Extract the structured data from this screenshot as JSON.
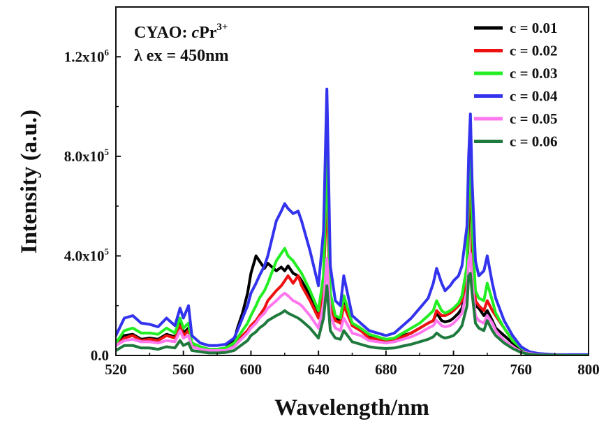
{
  "chart_data": {
    "type": "line",
    "xlabel": "Wavelength/nm",
    "ylabel": "Intensity (a.u.)",
    "xlim": [
      520,
      800
    ],
    "ylim": [
      0,
      1400000
    ],
    "xticks": [
      {
        "value": 520,
        "label": "520"
      },
      {
        "value": 560,
        "label": "560"
      },
      {
        "value": 600,
        "label": "600"
      },
      {
        "value": 640,
        "label": "640"
      },
      {
        "value": 680,
        "label": "680"
      },
      {
        "value": 720,
        "label": "720"
      },
      {
        "value": 760,
        "label": "760"
      },
      {
        "value": 800,
        "label": "800"
      }
    ],
    "yticks": [
      {
        "value": 0,
        "label": "0.0",
        "exp": ""
      },
      {
        "value": 400000,
        "label": "4.0x10",
        "exp": "5"
      },
      {
        "value": 800000,
        "label": "8.0x10",
        "exp": "5"
      },
      {
        "value": 1200000,
        "label": "1.2x10",
        "exp": "6"
      }
    ],
    "annotation": {
      "line1_prefix": "CYAO: ",
      "line1_italic": "c",
      "line1_ion": "Pr",
      "line1_sup": "3+",
      "line2": "λ ex = 450nm"
    },
    "series": [
      {
        "name": "c = 0.01",
        "color": "#000000",
        "x": [
          520,
          525,
          530,
          535,
          540,
          545,
          550,
          555,
          558,
          560,
          563,
          565,
          570,
          575,
          580,
          585,
          590,
          592,
          595,
          598,
          600,
          603,
          605,
          608,
          610,
          615,
          618,
          620,
          622,
          625,
          628,
          630,
          635,
          640,
          643,
          645,
          647,
          650,
          653,
          655,
          660,
          665,
          670,
          675,
          680,
          685,
          690,
          695,
          700,
          705,
          708,
          710,
          713,
          715,
          718,
          720,
          723,
          725,
          728,
          729,
          730,
          731,
          733,
          735,
          738,
          740,
          743,
          745,
          750,
          755,
          760,
          765,
          770,
          780,
          790,
          800
        ],
        "values": [
          50000,
          80000,
          85000,
          65000,
          70000,
          65000,
          85000,
          75000,
          130000,
          90000,
          110000,
          50000,
          35000,
          25000,
          25000,
          30000,
          60000,
          110000,
          170000,
          250000,
          330000,
          400000,
          380000,
          350000,
          370000,
          340000,
          355000,
          340000,
          360000,
          330000,
          320000,
          300000,
          240000,
          160000,
          300000,
          740000,
          200000,
          150000,
          140000,
          220000,
          120000,
          100000,
          80000,
          70000,
          60000,
          65000,
          80000,
          90000,
          110000,
          130000,
          140000,
          170000,
          140000,
          135000,
          140000,
          150000,
          170000,
          190000,
          280000,
          550000,
          780000,
          400000,
          200000,
          190000,
          160000,
          180000,
          140000,
          110000,
          80000,
          50000,
          25000,
          12000,
          5000,
          2000,
          0,
          0
        ]
      },
      {
        "name": "c = 0.02",
        "color": "#ee1111",
        "x": [
          520,
          525,
          530,
          535,
          540,
          545,
          550,
          555,
          558,
          560,
          563,
          565,
          570,
          575,
          580,
          585,
          590,
          592,
          595,
          598,
          600,
          603,
          605,
          608,
          610,
          615,
          618,
          620,
          622,
          625,
          628,
          630,
          635,
          640,
          643,
          645,
          647,
          650,
          653,
          655,
          660,
          665,
          670,
          675,
          680,
          685,
          690,
          695,
          700,
          705,
          708,
          710,
          713,
          715,
          718,
          720,
          723,
          725,
          728,
          729,
          730,
          731,
          733,
          735,
          738,
          740,
          743,
          745,
          750,
          755,
          760,
          765,
          770,
          780,
          790,
          800
        ],
        "values": [
          40000,
          70000,
          80000,
          60000,
          65000,
          60000,
          80000,
          70000,
          120000,
          80000,
          100000,
          40000,
          30000,
          20000,
          20000,
          25000,
          40000,
          60000,
          80000,
          100000,
          120000,
          140000,
          160000,
          190000,
          220000,
          260000,
          280000,
          300000,
          320000,
          290000,
          320000,
          280000,
          220000,
          150000,
          280000,
          680000,
          200000,
          140000,
          130000,
          200000,
          120000,
          100000,
          70000,
          65000,
          55000,
          60000,
          75000,
          90000,
          110000,
          130000,
          140000,
          180000,
          160000,
          160000,
          170000,
          180000,
          200000,
          220000,
          310000,
          600000,
          820000,
          450000,
          220000,
          200000,
          180000,
          220000,
          180000,
          160000,
          110000,
          60000,
          30000,
          15000,
          5000,
          2000,
          0,
          0
        ]
      },
      {
        "name": "c = 0.03",
        "color": "#22ee22",
        "x": [
          520,
          525,
          530,
          535,
          540,
          545,
          550,
          555,
          558,
          560,
          563,
          565,
          570,
          575,
          580,
          585,
          590,
          592,
          595,
          598,
          600,
          603,
          605,
          608,
          610,
          615,
          618,
          620,
          622,
          625,
          628,
          630,
          635,
          640,
          643,
          645,
          647,
          650,
          653,
          655,
          660,
          665,
          670,
          675,
          680,
          685,
          690,
          695,
          700,
          705,
          708,
          710,
          713,
          715,
          718,
          720,
          723,
          725,
          728,
          729,
          730,
          731,
          733,
          735,
          738,
          740,
          743,
          745,
          750,
          755,
          760,
          765,
          770,
          780,
          790,
          800
        ],
        "values": [
          50000,
          100000,
          110000,
          90000,
          90000,
          85000,
          110000,
          90000,
          150000,
          110000,
          130000,
          50000,
          35000,
          25000,
          25000,
          30000,
          50000,
          70000,
          100000,
          130000,
          160000,
          200000,
          230000,
          260000,
          290000,
          380000,
          410000,
          430000,
          400000,
          380000,
          350000,
          330000,
          260000,
          180000,
          320000,
          820000,
          250000,
          160000,
          150000,
          240000,
          130000,
          110000,
          85000,
          75000,
          65000,
          70000,
          90000,
          110000,
          130000,
          160000,
          180000,
          220000,
          180000,
          170000,
          180000,
          190000,
          210000,
          240000,
          360000,
          700000,
          900000,
          520000,
          260000,
          230000,
          220000,
          290000,
          220000,
          170000,
          110000,
          60000,
          30000,
          15000,
          5000,
          2000,
          0,
          0
        ]
      },
      {
        "name": "c = 0.04",
        "color": "#3333ee",
        "x": [
          520,
          525,
          530,
          535,
          540,
          545,
          550,
          555,
          558,
          560,
          563,
          565,
          570,
          575,
          580,
          585,
          590,
          592,
          595,
          598,
          600,
          603,
          605,
          608,
          610,
          615,
          618,
          620,
          622,
          625,
          628,
          630,
          635,
          640,
          643,
          645,
          647,
          650,
          653,
          655,
          660,
          665,
          670,
          675,
          680,
          685,
          690,
          695,
          700,
          705,
          708,
          710,
          713,
          715,
          718,
          720,
          723,
          725,
          728,
          729,
          730,
          731,
          733,
          735,
          738,
          740,
          743,
          745,
          750,
          755,
          760,
          765,
          770,
          780,
          790,
          800
        ],
        "values": [
          80000,
          150000,
          160000,
          130000,
          125000,
          115000,
          150000,
          120000,
          190000,
          150000,
          200000,
          80000,
          50000,
          40000,
          40000,
          45000,
          70000,
          100000,
          150000,
          200000,
          250000,
          290000,
          320000,
          360000,
          400000,
          540000,
          580000,
          610000,
          590000,
          570000,
          580000,
          540000,
          420000,
          280000,
          500000,
          1070000,
          360000,
          220000,
          200000,
          320000,
          160000,
          130000,
          100000,
          90000,
          80000,
          90000,
          120000,
          150000,
          190000,
          230000,
          290000,
          350000,
          290000,
          260000,
          280000,
          300000,
          320000,
          360000,
          520000,
          800000,
          970000,
          700000,
          380000,
          320000,
          340000,
          400000,
          290000,
          230000,
          140000,
          80000,
          35000,
          15000,
          8000,
          3000,
          3000,
          3000
        ]
      },
      {
        "name": "c = 0.05",
        "color": "#ff77ee",
        "x": [
          520,
          525,
          530,
          535,
          540,
          545,
          550,
          555,
          558,
          560,
          563,
          565,
          570,
          575,
          580,
          585,
          590,
          592,
          595,
          598,
          600,
          603,
          605,
          608,
          610,
          615,
          618,
          620,
          622,
          625,
          628,
          630,
          635,
          640,
          643,
          645,
          647,
          650,
          653,
          655,
          660,
          665,
          670,
          675,
          680,
          685,
          690,
          695,
          700,
          705,
          708,
          710,
          713,
          715,
          718,
          720,
          723,
          725,
          728,
          729,
          730,
          731,
          733,
          735,
          738,
          740,
          743,
          745,
          750,
          755,
          760,
          765,
          770,
          780,
          790,
          800
        ],
        "values": [
          40000,
          60000,
          65000,
          55000,
          55000,
          50000,
          60000,
          55000,
          100000,
          70000,
          80000,
          35000,
          25000,
          20000,
          20000,
          20000,
          35000,
          50000,
          70000,
          90000,
          110000,
          130000,
          150000,
          170000,
          190000,
          220000,
          240000,
          250000,
          240000,
          220000,
          210000,
          200000,
          160000,
          110000,
          200000,
          390000,
          160000,
          110000,
          100000,
          150000,
          90000,
          80000,
          60000,
          55000,
          50000,
          55000,
          65000,
          75000,
          90000,
          110000,
          120000,
          140000,
          120000,
          115000,
          120000,
          130000,
          150000,
          170000,
          260000,
          380000,
          410000,
          300000,
          160000,
          140000,
          130000,
          160000,
          130000,
          100000,
          60000,
          35000,
          15000,
          8000,
          3000,
          1000,
          0,
          0
        ]
      },
      {
        "name": "c = 0.06",
        "color": "#1f7a3d",
        "x": [
          520,
          525,
          530,
          535,
          540,
          545,
          550,
          555,
          558,
          560,
          563,
          565,
          570,
          575,
          580,
          585,
          590,
          592,
          595,
          598,
          600,
          603,
          605,
          608,
          610,
          615,
          618,
          620,
          622,
          625,
          628,
          630,
          635,
          640,
          643,
          645,
          647,
          650,
          653,
          655,
          660,
          665,
          670,
          675,
          680,
          685,
          690,
          695,
          700,
          705,
          708,
          710,
          713,
          715,
          718,
          720,
          723,
          725,
          728,
          729,
          730,
          731,
          733,
          735,
          738,
          740,
          743,
          745,
          750,
          755,
          760,
          765,
          770,
          780,
          790,
          800
        ],
        "values": [
          20000,
          40000,
          40000,
          30000,
          30000,
          25000,
          35000,
          30000,
          60000,
          40000,
          50000,
          20000,
          15000,
          10000,
          10000,
          12000,
          20000,
          30000,
          45000,
          60000,
          80000,
          95000,
          110000,
          125000,
          140000,
          160000,
          170000,
          180000,
          170000,
          160000,
          150000,
          140000,
          110000,
          70000,
          150000,
          280000,
          100000,
          70000,
          65000,
          100000,
          55000,
          45000,
          35000,
          30000,
          28000,
          30000,
          38000,
          45000,
          55000,
          65000,
          75000,
          90000,
          75000,
          70000,
          75000,
          80000,
          100000,
          120000,
          200000,
          320000,
          330000,
          250000,
          130000,
          110000,
          100000,
          140000,
          100000,
          80000,
          50000,
          28000,
          12000,
          5000,
          2000,
          1000,
          0,
          0
        ]
      }
    ]
  }
}
